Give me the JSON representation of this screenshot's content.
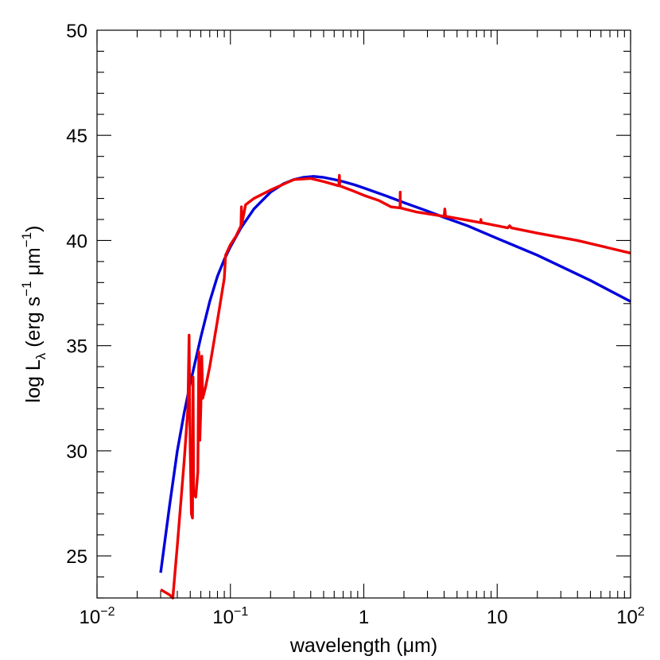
{
  "chart_data": {
    "type": "line",
    "xlabel": "wavelength (μm)",
    "ylabel": "log L_λ (erg s^-1 μm^-1)",
    "ylabel_parts": {
      "prefix": "log L",
      "sub": "λ",
      "mid": " (erg s",
      "sup1": "−1",
      "mid2": " μm",
      "sup2": "−1",
      "suffix": ")"
    },
    "xscale": "log",
    "xlim": [
      0.01,
      100
    ],
    "ylim": [
      23,
      50
    ],
    "x_ticks": [
      {
        "value": 0.01,
        "base": "10",
        "exp": "−2"
      },
      {
        "value": 0.1,
        "base": "10",
        "exp": "−1"
      },
      {
        "value": 1,
        "base": "1",
        "exp": ""
      },
      {
        "value": 10,
        "base": "10",
        "exp": ""
      },
      {
        "value": 100,
        "base": "10",
        "exp": "2"
      }
    ],
    "y_ticks": [
      25,
      30,
      35,
      40,
      45,
      50
    ],
    "y_minor_step": 1,
    "grid": false,
    "series": [
      {
        "color": "#0000dd",
        "points": [
          [
            0.03,
            24.2
          ],
          [
            0.035,
            27.4
          ],
          [
            0.04,
            30.0
          ],
          [
            0.045,
            31.8
          ],
          [
            0.05,
            33.2
          ],
          [
            0.06,
            35.4
          ],
          [
            0.07,
            37.1
          ],
          [
            0.08,
            38.3
          ],
          [
            0.09,
            39.1
          ],
          [
            0.1,
            39.7
          ],
          [
            0.12,
            40.6
          ],
          [
            0.15,
            41.5
          ],
          [
            0.2,
            42.3
          ],
          [
            0.25,
            42.7
          ],
          [
            0.3,
            42.9
          ],
          [
            0.35,
            43.0
          ],
          [
            0.42,
            43.05
          ],
          [
            0.5,
            43.0
          ],
          [
            0.6,
            42.9
          ],
          [
            0.7,
            42.8
          ],
          [
            0.85,
            42.65
          ],
          [
            1.0,
            42.5
          ],
          [
            1.5,
            42.1
          ],
          [
            2.0,
            41.8
          ],
          [
            3.0,
            41.4
          ],
          [
            4.0,
            41.1
          ],
          [
            6.0,
            40.7
          ],
          [
            10.0,
            40.1
          ],
          [
            20.0,
            39.3
          ],
          [
            50.0,
            38.1
          ],
          [
            100.0,
            37.1
          ]
        ]
      },
      {
        "color": "#ee0000",
        "points": [
          [
            0.03,
            23.4
          ],
          [
            0.035,
            23.15
          ],
          [
            0.037,
            23.0
          ],
          [
            0.04,
            25.5
          ],
          [
            0.045,
            29.5
          ],
          [
            0.048,
            32.0
          ],
          [
            0.049,
            35.5
          ],
          [
            0.0495,
            32.5
          ],
          [
            0.05,
            30.0
          ],
          [
            0.051,
            27.0
          ],
          [
            0.052,
            26.8
          ],
          [
            0.0525,
            33.5
          ],
          [
            0.053,
            28.0
          ],
          [
            0.055,
            27.8
          ],
          [
            0.057,
            29.0
          ],
          [
            0.058,
            34.7
          ],
          [
            0.059,
            30.5
          ],
          [
            0.06,
            32.0
          ],
          [
            0.061,
            34.5
          ],
          [
            0.062,
            32.5
          ],
          [
            0.065,
            33.0
          ],
          [
            0.07,
            34.0
          ],
          [
            0.08,
            36.2
          ],
          [
            0.09,
            38.2
          ],
          [
            0.092,
            39.3
          ],
          [
            0.1,
            39.8
          ],
          [
            0.11,
            40.2
          ],
          [
            0.12,
            40.7
          ],
          [
            0.121,
            41.6
          ],
          [
            0.122,
            40.8
          ],
          [
            0.13,
            41.7
          ],
          [
            0.15,
            42.0
          ],
          [
            0.2,
            42.4
          ],
          [
            0.3,
            42.9
          ],
          [
            0.4,
            42.95
          ],
          [
            0.5,
            42.8
          ],
          [
            0.65,
            42.6
          ],
          [
            0.656,
            43.1
          ],
          [
            0.66,
            42.6
          ],
          [
            0.8,
            42.4
          ],
          [
            1.0,
            42.15
          ],
          [
            1.3,
            41.9
          ],
          [
            1.6,
            41.6
          ],
          [
            1.87,
            41.55
          ],
          [
            1.875,
            42.3
          ],
          [
            1.88,
            41.55
          ],
          [
            2.5,
            41.35
          ],
          [
            4.0,
            41.15
          ],
          [
            4.05,
            41.5
          ],
          [
            4.1,
            41.15
          ],
          [
            7.5,
            40.85
          ],
          [
            7.55,
            41.0
          ],
          [
            7.6,
            40.85
          ],
          [
            12.0,
            40.6
          ],
          [
            12.4,
            40.7
          ],
          [
            12.8,
            40.6
          ],
          [
            20.0,
            40.35
          ],
          [
            40.0,
            40.0
          ],
          [
            100.0,
            39.4
          ]
        ]
      }
    ]
  }
}
